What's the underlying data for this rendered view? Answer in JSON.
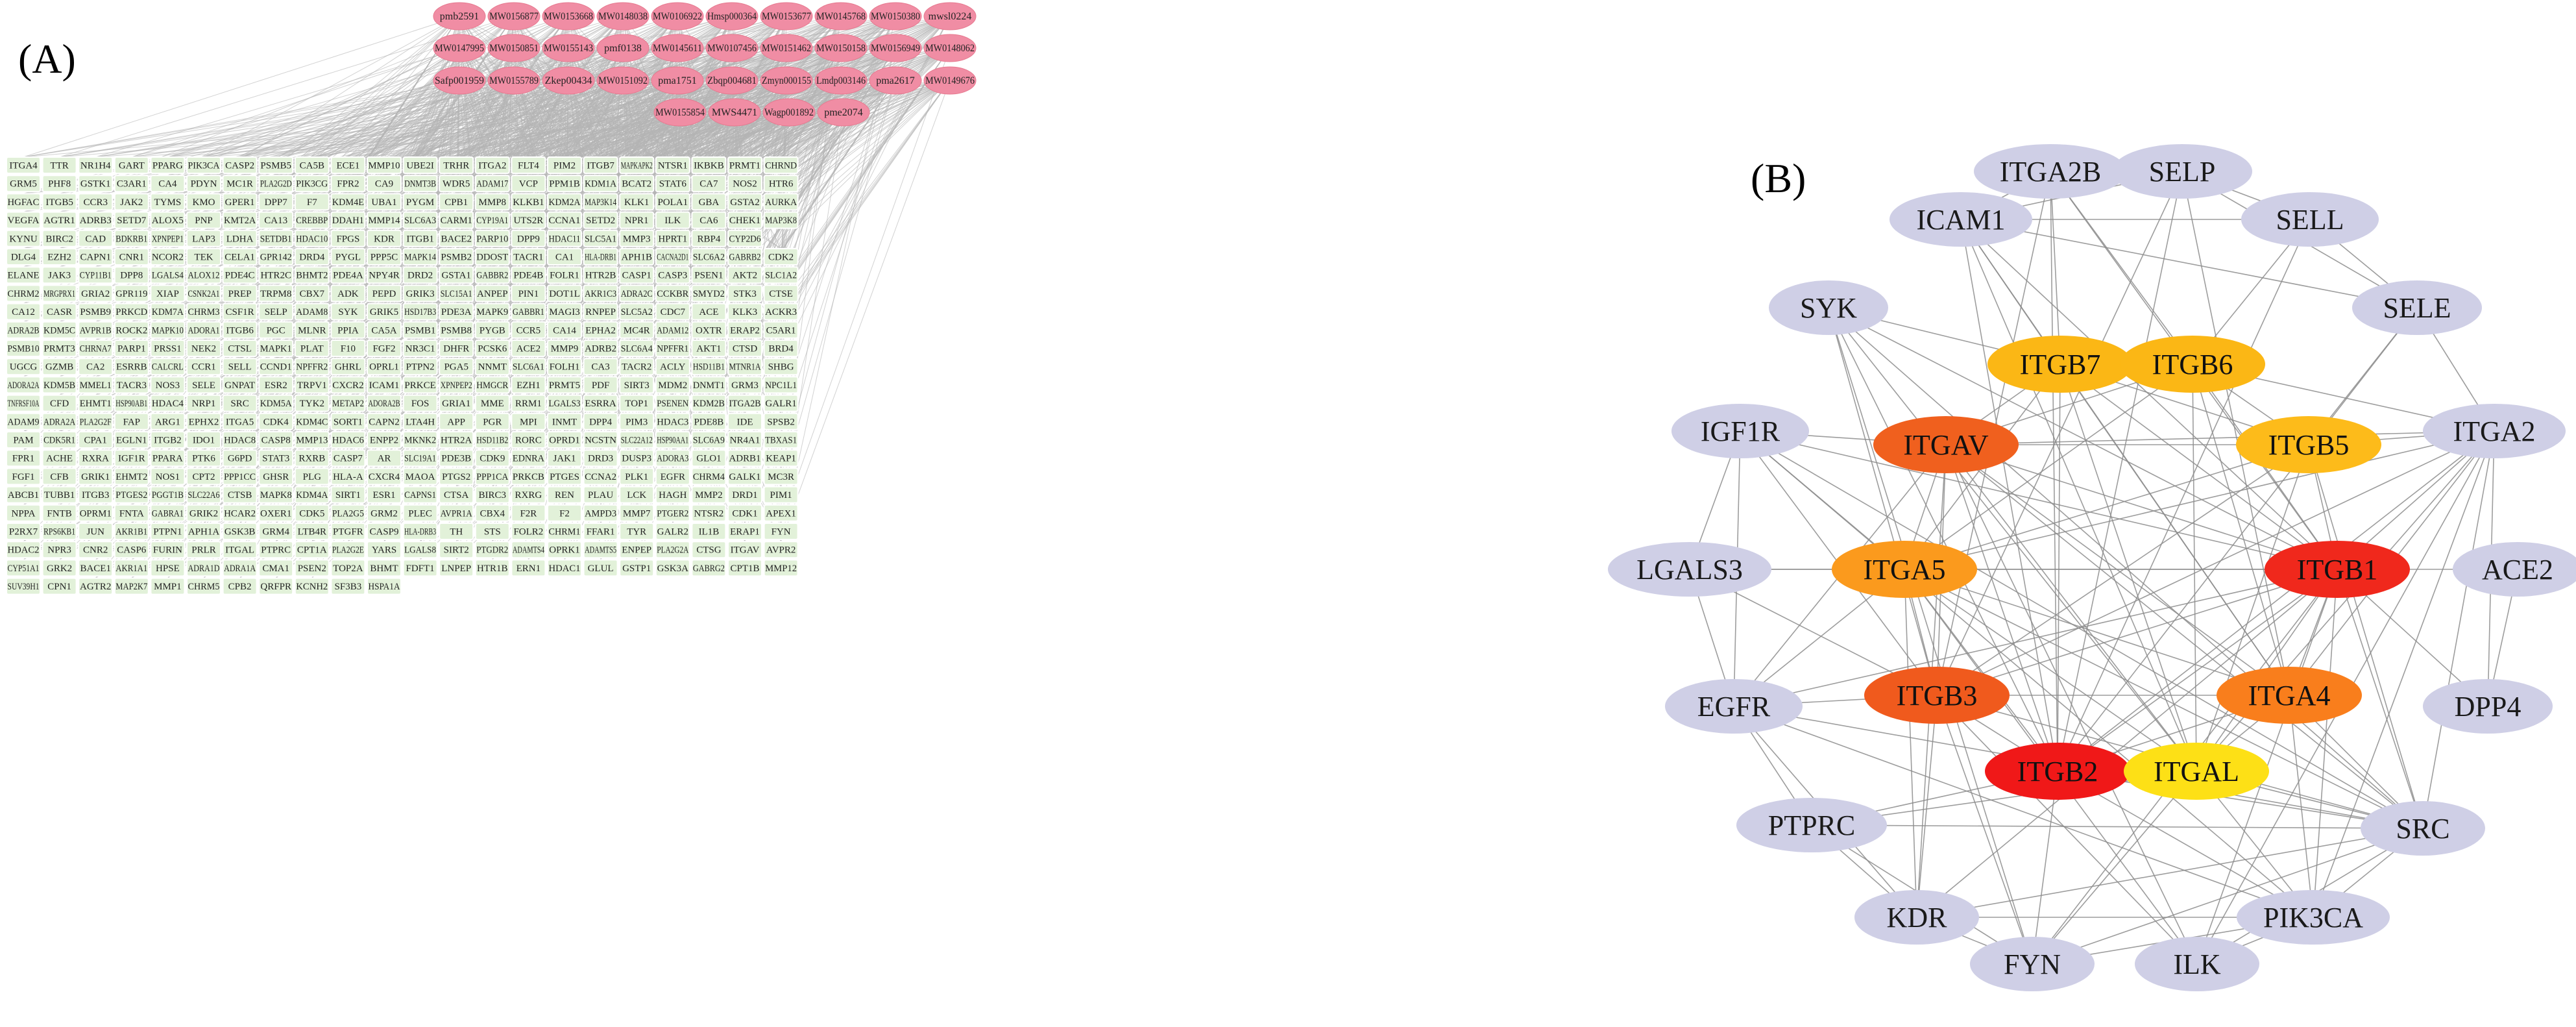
{
  "panel_a": {
    "label": "(A)",
    "compounds": [
      [
        "pmb2591",
        "MW0156877",
        "MW0153668",
        "MW0148038",
        "MW0106922",
        "Hmsp000364",
        "MW0153677",
        "MW0145768",
        "MW0150380",
        "mwsl0224"
      ],
      [
        "MW0147995",
        "MW0150851",
        "MW0155143",
        "pmf0138",
        "MW0145611",
        "MW0107456",
        "MW0151462",
        "MW0150158",
        "MW0156949",
        "MW0148062"
      ],
      [
        "Safp001959",
        "MW0155789",
        "Zkep00434",
        "MW0151092",
        "pma1751",
        "Zbqp004681",
        "Zmyn000155",
        "Lmdp003146",
        "pma2617",
        "MW0149676"
      ],
      [
        "MW0155854",
        "MWS4471",
        "Wagp001892",
        "pme2074"
      ]
    ],
    "targets": [
      [
        "ITGA4",
        "TTR",
        "NR1H4",
        "GART",
        "PPARG",
        "PIK3CA",
        "CASP2",
        "PSMB5",
        "CA5B",
        "ECE1",
        "MMP10",
        "UBE2I",
        "TRHR",
        "ITGA2",
        "FLT4",
        "PIM2",
        "ITGB7",
        "MAPKAPK2",
        "NTSR1",
        "IKBKB",
        "PRMT1",
        "CHRND"
      ],
      [
        "GRM5",
        "PHF8",
        "GSTK1",
        "C3AR1",
        "CA4",
        "PDYN",
        "MC1R",
        "PLA2G2D",
        "PIK3CG",
        "FPR2",
        "CA9",
        "DNMT3B",
        "WDR5",
        "ADAM17",
        "VCP",
        "PPM1B",
        "KDM1A",
        "BCAT2",
        "STAT6",
        "CA7",
        "NOS2",
        "HTR6"
      ],
      [
        "HGFAC",
        "ITGB5",
        "CCR3",
        "JAK2",
        "TYMS",
        "KMO",
        "GPER1",
        "DPP7",
        "F7",
        "KDM4E",
        "UBA1",
        "PYGM",
        "CPB1",
        "MMP8",
        "KLKB1",
        "KDM2A",
        "MAP3K14",
        "KLK1",
        "POLA1",
        "GBA",
        "GSTA2",
        "AURKA"
      ],
      [
        "VEGFA",
        "AGTR1",
        "ADRB3",
        "SETD7",
        "ALOX5",
        "PNP",
        "KMT2A",
        "CA13",
        "CREBBP",
        "DDAH1",
        "MMP14",
        "SLC6A3",
        "CARM1",
        "CYP19A1",
        "UTS2R",
        "CCNA1",
        "SETD2",
        "NPR1",
        "ILK",
        "CA6",
        "CHEK1",
        "MAP3K8"
      ],
      [
        "KYNU",
        "BIRC2",
        "CAD",
        "BDKRB1",
        "XPNPEP1",
        "LAP3",
        "LDHA",
        "SETDB1",
        "HDAC10",
        "FPGS",
        "KDR",
        "ITGB1",
        "BACE2",
        "PARP10",
        "DPP9",
        "HDAC11",
        "SLC5A1",
        "MMP3",
        "HPRT1",
        "RBP4",
        "CYP2D6"
      ],
      [
        "DLG4",
        "EZH2",
        "CAPN1",
        "CNR1",
        "NCOR2",
        "TEK",
        "CELA1",
        "GPR142",
        "DRD4",
        "PYGL",
        "PPP5C",
        "MAPK14",
        "PSMB2",
        "DDOST",
        "TACR1",
        "CA1",
        "HLA-DRB1",
        "APH1B",
        "CACNA2D1",
        "SLC6A2",
        "GABRB2",
        "CDK2"
      ],
      [
        "ELANE",
        "JAK3",
        "CYP11B1",
        "DPP8",
        "LGALS4",
        "ALOX12",
        "PDE4C",
        "HTR2C",
        "BHMT2",
        "PDE4A",
        "NPY4R",
        "DRD2",
        "GSTA1",
        "GABBR2",
        "PDE4B",
        "FOLR1",
        "HTR2B",
        "CASP1",
        "CASP3",
        "PSEN1",
        "AKT2",
        "SLC1A2"
      ],
      [
        "CHRM2",
        "MRGPRX1",
        "GRIA2",
        "GPR119",
        "XIAP",
        "CSNK2A1",
        "PREP",
        "TRPM8",
        "CBX7",
        "ADK",
        "PEPD",
        "GRIK3",
        "SLC15A1",
        "ANPEP",
        "PIN1",
        "DOT1L",
        "AKR1C3",
        "ADRA2C",
        "CCKBR",
        "SMYD2",
        "STK3",
        "CTSE"
      ],
      [
        "CA12",
        "CASR",
        "PSMB9",
        "PRKCD",
        "KDM7A",
        "CHRM3",
        "CSF1R",
        "SELP",
        "ADAM8",
        "SYK",
        "GRIK5",
        "HSD17B3",
        "PDE3A",
        "MAPK9",
        "GABBR1",
        "MAGI3",
        "RNPEP",
        "SLC5A2",
        "CDC7",
        "ACE",
        "KLK3",
        "ACKR3"
      ],
      [
        "ADRA2B",
        "KDM5C",
        "AVPR1B",
        "ROCK2",
        "MAPK10",
        "ADORA1",
        "ITGB6",
        "PGC",
        "MLNR",
        "PPIA",
        "CA5A",
        "PSMB1",
        "PSMB8",
        "PYGB",
        "CCR5",
        "CA14",
        "EPHA2",
        "MC4R",
        "ADAM12",
        "OXTR",
        "ERAP2",
        "C5AR1"
      ],
      [
        "PSMB10",
        "PRMT3",
        "CHRNA7",
        "PARP1",
        "PRSS1",
        "NEK2",
        "CTSL",
        "MAPK1",
        "PLAT",
        "F10",
        "FGF2",
        "NR3C1",
        "DHFR",
        "PCSK6",
        "ACE2",
        "MMP9",
        "ADRB2",
        "SLC6A4",
        "NPFFR1",
        "AKT1",
        "CTSD",
        "BRD4"
      ],
      [
        "UGCG",
        "GZMB",
        "CA2",
        "ESRRB",
        "CALCRL",
        "CCR1",
        "SELL",
        "CCND1",
        "NPFFR2",
        "GHRL",
        "OPRL1",
        "PTPN2",
        "PGA5",
        "NNMT",
        "SLC6A1",
        "FOLH1",
        "CA3",
        "TACR2",
        "ACLY",
        "HSD11B1",
        "MTNR1A",
        "SHBG"
      ],
      [
        "ADORA2A",
        "KDM5B",
        "MMEL1",
        "TACR3",
        "NOS3",
        "SELE",
        "GNPAT",
        "ESR2",
        "TRPV1",
        "CXCR2",
        "ICAM1",
        "PRKCE",
        "XPNPEP2",
        "HMGCR",
        "EZH1",
        "PRMT5",
        "PDF",
        "SIRT3",
        "MDM2",
        "DNMT1",
        "GRM3",
        "NPC1L1"
      ],
      [
        "TNFRSF10A",
        "CFD",
        "EHMT1",
        "HSP90AB1",
        "HDAC4",
        "NRP1",
        "SRC",
        "KDM5A",
        "TYK2",
        "METAP2",
        "ADORA2B",
        "FOS",
        "GRIA1",
        "MME",
        "RRM1",
        "LGALS3",
        "ESRRA",
        "TOP1",
        "PSENEN",
        "KDM2B",
        "ITGA2B",
        "GALR1"
      ],
      [
        "ADAM9",
        "ADRA2A",
        "PLA2G2F",
        "FAP",
        "ARG1",
        "EPHX2",
        "ITGA5",
        "CDK4",
        "KDM4C",
        "SORT1",
        "CAPN2",
        "LTA4H",
        "APP",
        "PGR",
        "MPI",
        "INMT",
        "DPP4",
        "PIM3",
        "HDAC3",
        "PDE8B",
        "IDE",
        "SPSB2"
      ],
      [
        "PAM",
        "CDK5R1",
        "CPA1",
        "EGLN1",
        "ITGB2",
        "IDO1",
        "HDAC8",
        "CASP8",
        "MMP13",
        "HDAC6",
        "ENPP2",
        "MKNK2",
        "HTR2A",
        "HSD11B2",
        "RORC",
        "OPRD1",
        "NCSTN",
        "SLC22A12",
        "HSP90AA1",
        "SLC6A9",
        "NR4A1",
        "TBXAS1"
      ],
      [
        "FPR1",
        "ACHE",
        "RXRA",
        "IGF1R",
        "PPARA",
        "PTK6",
        "G6PD",
        "STAT3",
        "RXRB",
        "CASP7",
        "AR",
        "SLC19A1",
        "PDE3B",
        "CDK9",
        "EDNRA",
        "JAK1",
        "DRD3",
        "DUSP3",
        "ADORA3",
        "GLO1",
        "ADRB1",
        "KEAP1"
      ],
      [
        "FGF1",
        "CFB",
        "GRIK1",
        "EHMT2",
        "NOS1",
        "CPT2",
        "PPP1CC",
        "GHSR",
        "PLG",
        "HLA-A",
        "CXCR4",
        "MAOA",
        "PTGS2",
        "PPP1CA",
        "PRKCB",
        "PTGES",
        "CCNA2",
        "PLK1",
        "EGFR",
        "CHRM4",
        "GALK1",
        "MC3R"
      ],
      [
        "ABCB1",
        "TUBB1",
        "ITGB3",
        "PTGES2",
        "PGGT1B",
        "SLC22A6",
        "CTSB",
        "MAPK8",
        "KDM4A",
        "SIRT1",
        "ESR1",
        "CAPNS1",
        "CTSA",
        "BIRC3",
        "RXRG",
        "REN",
        "PLAU",
        "LCK",
        "HAGH",
        "MMP2",
        "DRD1",
        "PIM1"
      ],
      [
        "NPPA",
        "FNTB",
        "OPRM1",
        "FNTA",
        "GABRA1",
        "GRIK2",
        "HCAR2",
        "OXER1",
        "CDK5",
        "PLA2G5",
        "GRM2",
        "PLEC",
        "AVPR1A",
        "CBX4",
        "F2R",
        "F2",
        "AMPD3",
        "MMP7",
        "PTGER2",
        "NTSR2",
        "CDK1",
        "APEX1"
      ],
      [
        "P2RX7",
        "RPS6KB1",
        "JUN",
        "AKR1B1",
        "PTPN1",
        "APH1A",
        "GSK3B",
        "GRM4",
        "LTB4R",
        "PTGFR",
        "CASP9",
        "HLA-DRB3",
        "TH",
        "STS",
        "FOLR2",
        "CHRM1",
        "FFAR1",
        "TYR",
        "GALR2",
        "IL1B",
        "ERAP1",
        "FYN"
      ],
      [
        "HDAC2",
        "NPR3",
        "CNR2",
        "CASP6",
        "FURIN",
        "PRLR",
        "ITGAL",
        "PTPRC",
        "CPT1A",
        "PLA2G2E",
        "YARS",
        "LGALS8",
        "SIRT2",
        "PTGDR2",
        "ADAMTS4",
        "OPRK1",
        "ADAMTS5",
        "ENPEP",
        "PLA2G2A",
        "CTSG",
        "ITGAV",
        "AVPR2"
      ],
      [
        "CYP51A1",
        "GRK2",
        "BACE1",
        "AKR1A1",
        "HPSE",
        "ADRA1D",
        "ADRA1A",
        "CMA1",
        "PSEN2",
        "TOP2A",
        "BHMT",
        "FDFT1",
        "LNPEP",
        "HTR1B",
        "ERN1",
        "HDAC1",
        "GLUL",
        "GSTP1",
        "GSK3A",
        "GABRG2",
        "CPT1B",
        "MMP12"
      ],
      [
        "SUV39H1",
        "CPN1",
        "AGTR2",
        "MAP2K7",
        "MMP1",
        "CHRM5",
        "CPB2",
        "QRFPR",
        "KCNH2",
        "SF3B3",
        "HSPA1A"
      ]
    ]
  },
  "panel_b": {
    "label": "(B)",
    "nodes": [
      {
        "id": "ITGA2B",
        "color": "#cfcfe6"
      },
      {
        "id": "SELP",
        "color": "#cfcfe6"
      },
      {
        "id": "ICAM1",
        "color": "#cfcfe6"
      },
      {
        "id": "SELL",
        "color": "#cfcfe6"
      },
      {
        "id": "SYK",
        "color": "#cfcfe6"
      },
      {
        "id": "SELE",
        "color": "#cfcfe6"
      },
      {
        "id": "ITGB7",
        "color": "#fbb715"
      },
      {
        "id": "ITGB6",
        "color": "#fbb715"
      },
      {
        "id": "IGF1R",
        "color": "#cfcfe6"
      },
      {
        "id": "ITGAV",
        "color": "#f0601e"
      },
      {
        "id": "ITGB5",
        "color": "#fdbb1a"
      },
      {
        "id": "ITGA2",
        "color": "#cfcfe6"
      },
      {
        "id": "LGALS3",
        "color": "#cfcfe6"
      },
      {
        "id": "ITGA5",
        "color": "#fb9a1d"
      },
      {
        "id": "ITGB1",
        "color": "#f0281c"
      },
      {
        "id": "ACE2",
        "color": "#cfcfe6"
      },
      {
        "id": "ITGB3",
        "color": "#f05a1d"
      },
      {
        "id": "ITGA4",
        "color": "#f97e1c"
      },
      {
        "id": "EGFR",
        "color": "#cfcfe6"
      },
      {
        "id": "DPP4",
        "color": "#cfcfe6"
      },
      {
        "id": "ITGB2",
        "color": "#f01818"
      },
      {
        "id": "ITGAL",
        "color": "#fde016"
      },
      {
        "id": "PTPRC",
        "color": "#cfcfe6"
      },
      {
        "id": "SRC",
        "color": "#cfcfe6"
      },
      {
        "id": "KDR",
        "color": "#cfcfe6"
      },
      {
        "id": "PIK3CA",
        "color": "#cfcfe6"
      },
      {
        "id": "FYN",
        "color": "#cfcfe6"
      },
      {
        "id": "ILK",
        "color": "#cfcfe6"
      }
    ],
    "edges": [
      [
        "ITGB1",
        "ITGA4"
      ],
      [
        "ITGB1",
        "ITGA5"
      ],
      [
        "ITGB1",
        "ITGAV"
      ],
      [
        "ITGB1",
        "ITGA2"
      ],
      [
        "ITGB1",
        "ITGB2"
      ],
      [
        "ITGB1",
        "ITGB3"
      ],
      [
        "ITGB1",
        "ITGAL"
      ],
      [
        "ITGB1",
        "ITGB5"
      ],
      [
        "ITGB1",
        "ITGB6"
      ],
      [
        "ITGB1",
        "ITGB7"
      ],
      [
        "ITGB1",
        "SRC"
      ],
      [
        "ITGB1",
        "ILK"
      ],
      [
        "ITGB1",
        "PIK3CA"
      ],
      [
        "ITGB1",
        "FYN"
      ],
      [
        "ITGB1",
        "KDR"
      ],
      [
        "ITGB1",
        "EGFR"
      ],
      [
        "ITGB1",
        "IGF1R"
      ],
      [
        "ITGB1",
        "ICAM1"
      ],
      [
        "ITGB1",
        "LGALS3"
      ],
      [
        "ITGB1",
        "ACE2"
      ],
      [
        "ITGB1",
        "DPP4"
      ],
      [
        "ITGB1",
        "SYK"
      ],
      [
        "ITGB1",
        "ITGA2B"
      ],
      [
        "ITGB2",
        "ITGAL"
      ],
      [
        "ITGB2",
        "ITGA4"
      ],
      [
        "ITGB2",
        "ITGA5"
      ],
      [
        "ITGB2",
        "ICAM1"
      ],
      [
        "ITGB2",
        "SYK"
      ],
      [
        "ITGB2",
        "SELP"
      ],
      [
        "ITGB2",
        "SELL"
      ],
      [
        "ITGB2",
        "SELE"
      ],
      [
        "ITGB2",
        "PTPRC"
      ],
      [
        "ITGB2",
        "SRC"
      ],
      [
        "ITGB2",
        "FYN"
      ],
      [
        "ITGB2",
        "ITGB3"
      ],
      [
        "ITGB2",
        "ITGB7"
      ],
      [
        "ITGB2",
        "ITGAV"
      ],
      [
        "ITGB2",
        "ITGA2B"
      ],
      [
        "ITGB2",
        "PIK3CA"
      ],
      [
        "ITGB2",
        "ITGA2"
      ],
      [
        "ITGB3",
        "ITGAV"
      ],
      [
        "ITGB3",
        "ITGA2B"
      ],
      [
        "ITGB3",
        "ITGA5"
      ],
      [
        "ITGB3",
        "SRC"
      ],
      [
        "ITGB3",
        "SYK"
      ],
      [
        "ITGB3",
        "EGFR"
      ],
      [
        "ITGB3",
        "KDR"
      ],
      [
        "ITGB3",
        "IGF1R"
      ],
      [
        "ITGB3",
        "ITGA4"
      ],
      [
        "ITGB3",
        "ITGB5"
      ],
      [
        "ITGB3",
        "ILK"
      ],
      [
        "ITGB3",
        "FYN"
      ],
      [
        "ITGB3",
        "LGALS3"
      ],
      [
        "ITGB3",
        "SELP"
      ],
      [
        "ITGB3",
        "ITGA2"
      ],
      [
        "ITGA4",
        "ITGB7"
      ],
      [
        "ITGA4",
        "ITGA5"
      ],
      [
        "ITGA4",
        "ICAM1"
      ],
      [
        "ITGA4",
        "SRC"
      ],
      [
        "ITGA4",
        "ITGAV"
      ],
      [
        "ITGA4",
        "ITGAL"
      ],
      [
        "ITGA4",
        "SELP"
      ],
      [
        "ITGA4",
        "PIK3CA"
      ],
      [
        "ITGA4",
        "ITGA2"
      ],
      [
        "ITGA4",
        "ITGB6"
      ],
      [
        "ITGA5",
        "ITGAV"
      ],
      [
        "ITGA5",
        "ITGB5"
      ],
      [
        "ITGA5",
        "ITGB6"
      ],
      [
        "ITGA5",
        "ITGB7"
      ],
      [
        "ITGA5",
        "SRC"
      ],
      [
        "ITGA5",
        "EGFR"
      ],
      [
        "ITGA5",
        "ILK"
      ],
      [
        "ITGA5",
        "LGALS3"
      ],
      [
        "ITGA5",
        "IGF1R"
      ],
      [
        "ITGA5",
        "KDR"
      ],
      [
        "ITGA5",
        "ITGAL"
      ],
      [
        "ITGA5",
        "ITGA2"
      ],
      [
        "ITGAV",
        "ITGB5"
      ],
      [
        "ITGAV",
        "ITGB6"
      ],
      [
        "ITGAV",
        "ITGB7"
      ],
      [
        "ITGAV",
        "SRC"
      ],
      [
        "ITGAV",
        "KDR"
      ],
      [
        "ITGAV",
        "EGFR"
      ],
      [
        "ITGAV",
        "IGF1R"
      ],
      [
        "ITGAV",
        "ILK"
      ],
      [
        "ITGAV",
        "ITGA2"
      ],
      [
        "ITGAV",
        "ITGAL"
      ],
      [
        "ITGB5",
        "ITGB6"
      ],
      [
        "ITGB5",
        "ITGA2"
      ],
      [
        "ITGB5",
        "SELE"
      ],
      [
        "ITGB5",
        "ITGB7"
      ],
      [
        "ITGB5",
        "SRC"
      ],
      [
        "ITGB5",
        "ITGAL"
      ],
      [
        "ITGB6",
        "ITGB7"
      ],
      [
        "ITGB6",
        "ITGA2"
      ],
      [
        "ITGB6",
        "SELL"
      ],
      [
        "ITGB6",
        "ITGA2B"
      ],
      [
        "ITGB6",
        "ITGAL"
      ],
      [
        "ITGB7",
        "ITGA2B"
      ],
      [
        "ITGB7",
        "ICAM1"
      ],
      [
        "ITGB7",
        "ITGAL"
      ],
      [
        "ITGB7",
        "SYK"
      ],
      [
        "ITGAL",
        "ICAM1"
      ],
      [
        "ITGAL",
        "SRC"
      ],
      [
        "ITGAL",
        "FYN"
      ],
      [
        "ITGAL",
        "PTPRC"
      ],
      [
        "ITGAL",
        "SYK"
      ],
      [
        "ITGAL",
        "ITGA2"
      ],
      [
        "ITGAL",
        "PIK3CA"
      ],
      [
        "ICAM1",
        "SELP"
      ],
      [
        "ICAM1",
        "SELL"
      ],
      [
        "ICAM1",
        "SELE"
      ],
      [
        "ICAM1",
        "ITGA2B"
      ],
      [
        "SELP",
        "SELL"
      ],
      [
        "SELL",
        "SELE"
      ],
      [
        "SELP",
        "SELE"
      ],
      [
        "ITGA2B",
        "SELP"
      ],
      [
        "SRC",
        "EGFR"
      ],
      [
        "SRC",
        "PIK3CA"
      ],
      [
        "SRC",
        "FYN"
      ],
      [
        "SRC",
        "KDR"
      ],
      [
        "SRC",
        "SYK"
      ],
      [
        "SRC",
        "IGF1R"
      ],
      [
        "SRC",
        "PTPRC"
      ],
      [
        "SRC",
        "ITGA2"
      ],
      [
        "SRC",
        "ILK"
      ],
      [
        "EGFR",
        "PIK3CA"
      ],
      [
        "EGFR",
        "KDR"
      ],
      [
        "EGFR",
        "LGALS3"
      ],
      [
        "EGFR",
        "IGF1R"
      ],
      [
        "EGFR",
        "PTPRC"
      ],
      [
        "PIK3CA",
        "KDR"
      ],
      [
        "PIK3CA",
        "FYN"
      ],
      [
        "PIK3CA",
        "ILK"
      ],
      [
        "PIK3CA",
        "IGF1R"
      ],
      [
        "PIK3CA",
        "ITGA2"
      ],
      [
        "FYN",
        "PTPRC"
      ],
      [
        "FYN",
        "KDR"
      ],
      [
        "FYN",
        "SYK"
      ],
      [
        "ILK",
        "ITGA2"
      ],
      [
        "KDR",
        "PTPRC"
      ],
      [
        "LGALS3",
        "IGF1R"
      ],
      [
        "ACE2",
        "DPP4"
      ],
      [
        "ITGA2",
        "SELE"
      ],
      [
        "ITGA2",
        "DPP4"
      ]
    ]
  }
}
